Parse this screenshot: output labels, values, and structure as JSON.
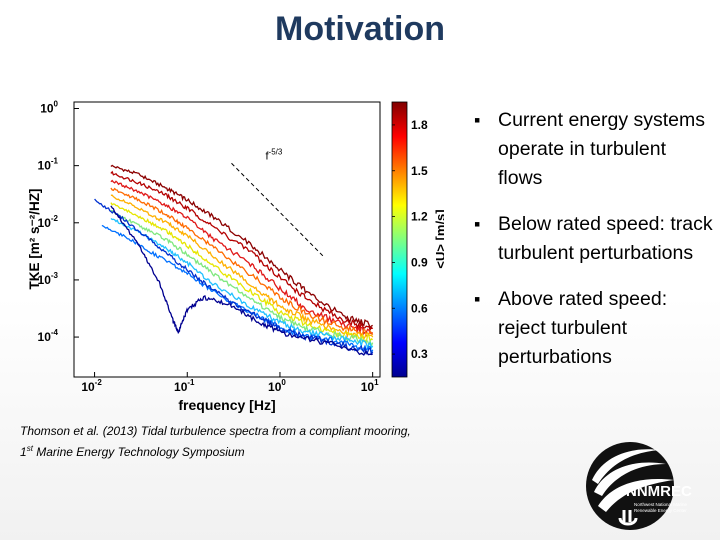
{
  "slide": {
    "title": "Motivation",
    "bullets": [
      "Current energy systems operate in turbulent flows",
      "Below rated speed: track turbulent perturbations",
      "Above rated speed: reject turbulent perturbations"
    ],
    "caption_line1": "Thomson et al. (2013) Tidal turbulence spectra from a compliant mooring,",
    "caption_line2_pre": "1",
    "caption_line2_sup": "st",
    "caption_line2_post": " Marine Energy Technology Symposium",
    "logo": {
      "name": "NNMREC",
      "sub1": "Northwest National Marine",
      "sub2": "Renewable Energy Center"
    }
  },
  "chart_data": {
    "type": "line",
    "x_scale": "log",
    "y_scale": "log",
    "xlabel": "frequency [Hz]",
    "ylabel": "TKE [m² s⁻²/HZ]",
    "xlim": [
      0.006,
      12
    ],
    "ylim": [
      2e-05,
      1.3
    ],
    "x_ticks": [
      {
        "value": 0.01,
        "base": "10",
        "exp": "-2"
      },
      {
        "value": 0.1,
        "base": "10",
        "exp": "-1"
      },
      {
        "value": 1,
        "base": "10",
        "exp": "0"
      },
      {
        "value": 10,
        "base": "10",
        "exp": "1"
      }
    ],
    "y_ticks": [
      {
        "value": 1,
        "base": "10",
        "exp": "0"
      },
      {
        "value": 0.1,
        "base": "10",
        "exp": "-1"
      },
      {
        "value": 0.01,
        "base": "10",
        "exp": "-2"
      },
      {
        "value": 0.001,
        "base": "10",
        "exp": "-3"
      },
      {
        "value": 0.0001,
        "base": "10",
        "exp": "-4"
      }
    ],
    "reference_line": {
      "label_base": "f",
      "label_exp": "-5/3",
      "x": [
        0.3,
        3.0
      ],
      "y": [
        0.11,
        0.0025
      ]
    },
    "colorbar": {
      "label": "<U> [m/s]",
      "range": [
        0.15,
        1.95
      ],
      "ticks": [
        0.3,
        0.6,
        0.9,
        1.2,
        1.5,
        1.8
      ],
      "colors": [
        "#00008f",
        "#0000ff",
        "#0080ff",
        "#00ffff",
        "#80ff80",
        "#ffff00",
        "#ff8000",
        "#ff0000",
        "#800000"
      ]
    },
    "series": [
      {
        "speed": 1.8,
        "color": "#8b0000",
        "x": [
          0.015,
          0.03,
          0.06,
          0.1,
          0.2,
          0.5,
          1.0,
          2.0,
          5.0,
          10.0
        ],
        "y": [
          0.1,
          0.07,
          0.04,
          0.025,
          0.012,
          0.004,
          0.0015,
          0.0006,
          0.00022,
          0.00016
        ]
      },
      {
        "speed": 1.7,
        "color": "#b40000",
        "x": [
          0.015,
          0.03,
          0.06,
          0.1,
          0.2,
          0.5,
          1.0,
          2.0,
          5.0,
          10.0
        ],
        "y": [
          0.075,
          0.05,
          0.03,
          0.018,
          0.008,
          0.003,
          0.0011,
          0.00045,
          0.00019,
          0.00014
        ]
      },
      {
        "speed": 1.6,
        "color": "#e01818",
        "x": [
          0.015,
          0.03,
          0.06,
          0.1,
          0.2,
          0.5,
          1.0,
          2.0,
          5.0,
          10.0
        ],
        "y": [
          0.055,
          0.035,
          0.02,
          0.012,
          0.005,
          0.0018,
          0.0007,
          0.0003,
          0.00016,
          0.00012
        ]
      },
      {
        "speed": 1.45,
        "color": "#ff6a00",
        "x": [
          0.015,
          0.03,
          0.06,
          0.1,
          0.2,
          0.5,
          1.0,
          2.0,
          5.0,
          10.0
        ],
        "y": [
          0.04,
          0.025,
          0.014,
          0.008,
          0.0035,
          0.0012,
          0.0005,
          0.00025,
          0.00014,
          0.00011
        ]
      },
      {
        "speed": 1.3,
        "color": "#ffb000",
        "x": [
          0.015,
          0.03,
          0.06,
          0.1,
          0.2,
          0.5,
          1.0,
          2.0,
          5.0,
          10.0
        ],
        "y": [
          0.03,
          0.018,
          0.01,
          0.006,
          0.0025,
          0.0008,
          0.00035,
          0.0002,
          0.00012,
          0.0001
        ]
      },
      {
        "speed": 1.15,
        "color": "#e6e600",
        "x": [
          0.015,
          0.03,
          0.06,
          0.1,
          0.2,
          0.5,
          1.0,
          2.0,
          5.0,
          10.0
        ],
        "y": [
          0.022,
          0.013,
          0.007,
          0.004,
          0.0017,
          0.0006,
          0.00027,
          0.00016,
          0.00011,
          9e-05
        ]
      },
      {
        "speed": 1.0,
        "color": "#7fe87f",
        "x": [
          0.015,
          0.03,
          0.06,
          0.1,
          0.2,
          0.5,
          1.0,
          2.0,
          5.0,
          10.0
        ],
        "y": [
          0.016,
          0.009,
          0.005,
          0.0028,
          0.0012,
          0.00045,
          0.00022,
          0.00014,
          0.0001,
          8e-05
        ]
      },
      {
        "speed": 0.85,
        "color": "#20c0ff",
        "x": [
          0.015,
          0.03,
          0.06,
          0.1,
          0.2,
          0.5,
          1.0,
          2.0,
          5.0,
          10.0
        ],
        "y": [
          0.012,
          0.007,
          0.0035,
          0.002,
          0.0008,
          0.00033,
          0.00018,
          0.00012,
          9e-05,
          7e-05
        ]
      },
      {
        "speed": 0.7,
        "color": "#0070ff",
        "x": [
          0.012,
          0.025,
          0.05,
          0.1,
          0.2,
          0.5,
          1.0,
          2.0,
          5.0,
          10.0
        ],
        "y": [
          0.009,
          0.005,
          0.0025,
          0.0013,
          0.0006,
          0.00026,
          0.00015,
          0.0001,
          8e-05,
          6e-05
        ]
      },
      {
        "speed": 0.55,
        "color": "#0030d0",
        "x": [
          0.01,
          0.02,
          0.04,
          0.08,
          0.15,
          0.3,
          0.6,
          1.0,
          2.0,
          5.0,
          10.0
        ],
        "y": [
          0.025,
          0.012,
          0.005,
          0.002,
          0.0009,
          0.0004,
          0.00022,
          0.00014,
          0.0001,
          7e-05,
          5.5e-05
        ]
      },
      {
        "speed": 0.4,
        "color": "#000090",
        "x": [
          0.015,
          0.03,
          0.05,
          0.07,
          0.08,
          0.1,
          0.15,
          0.3,
          0.6,
          1.0,
          3.0,
          10.0
        ],
        "y": [
          0.02,
          0.004,
          0.0009,
          0.0002,
          0.00012,
          0.0003,
          0.0005,
          0.00035,
          0.00018,
          0.00012,
          8e-05,
          5e-05
        ]
      }
    ]
  }
}
